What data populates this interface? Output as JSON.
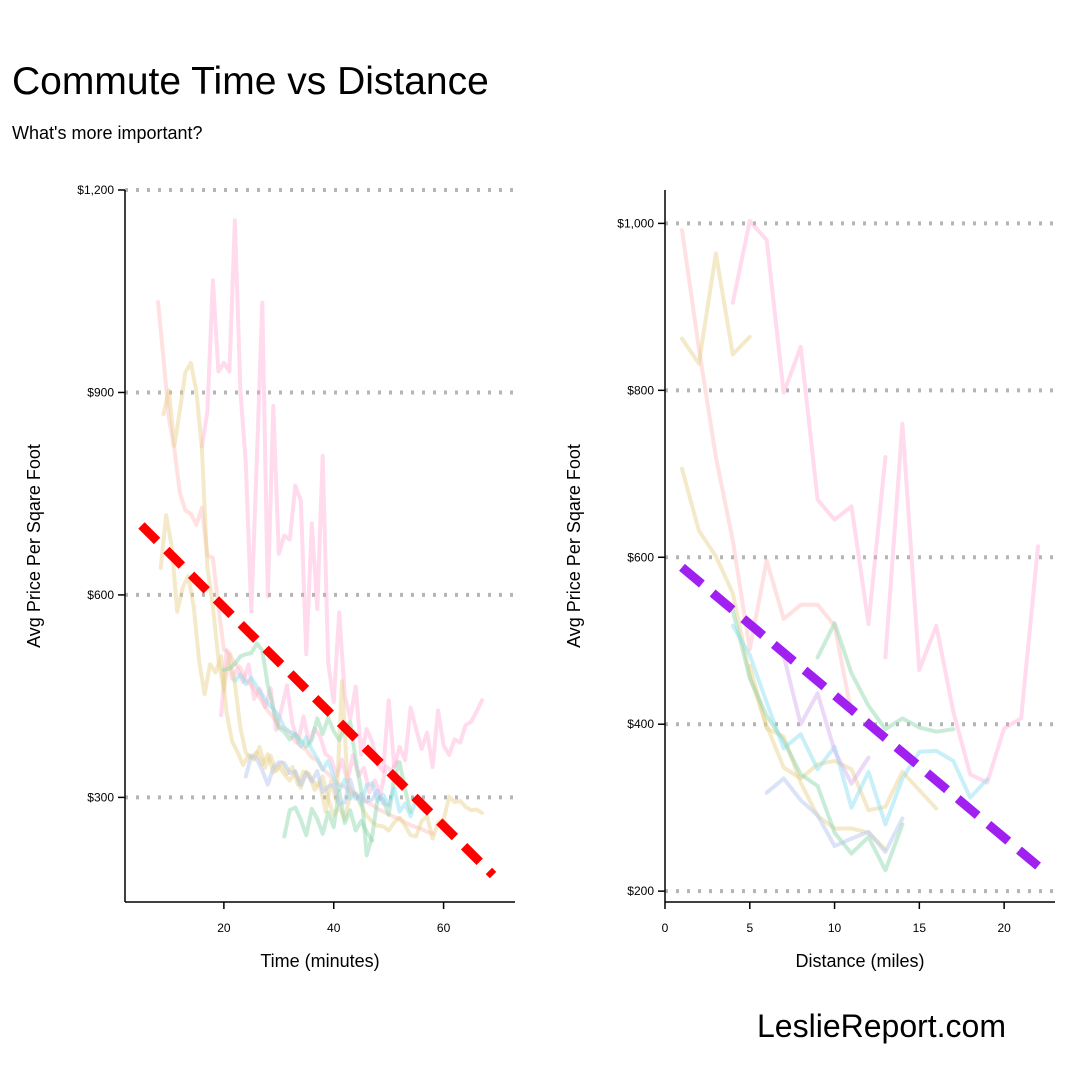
{
  "title": "Commute Time vs Distance",
  "subtitle": "What's more important?",
  "brand": "LeslieReport.com",
  "chart_data": [
    {
      "type": "line",
      "xlabel": "Time (minutes)",
      "ylabel": "Avg Price Per Sqare Foot",
      "xlim": [
        2,
        73
      ],
      "ylim": [
        145,
        1200
      ],
      "xticks": [
        20,
        40,
        60
      ],
      "xtick_labels": [
        "20",
        "40",
        "60"
      ],
      "yticks": [
        300,
        600,
        900,
        1200
      ],
      "ytick_labels": [
        "$300",
        "$600",
        "$900",
        "$1,200"
      ],
      "grid": "horizontal dotted",
      "series": [
        {
          "color": "#FF99CC",
          "opacity": 0.35,
          "x": [
            19.5,
            20.5,
            21.5,
            22.5,
            23.5,
            24.5,
            25.5,
            26.5,
            27.5,
            28.5,
            29.5,
            30.5,
            31.5,
            32.5,
            33.5,
            34.5,
            35.5,
            36.5,
            37.5,
            38.5,
            39.5,
            40.5,
            41.5,
            42.5,
            43.5,
            44.5,
            45.5,
            46.5,
            47.5,
            48.5,
            49.5,
            50.5,
            51.5
          ],
          "y": [
            422,
            518,
            476,
            491,
            471,
            497,
            446,
            461,
            434,
            462,
            400,
            431,
            466,
            409,
            381,
            420,
            381,
            402,
            391,
            364,
            358,
            331,
            356,
            324,
            363,
            332,
            344,
            308,
            325,
            304,
            346,
            339,
            353
          ]
        },
        {
          "color": "#FF99CC",
          "opacity": 0.35,
          "x": [
            16,
            17,
            18,
            19,
            20,
            21,
            22,
            23,
            24,
            25,
            26,
            27,
            28,
            29,
            30,
            31,
            32,
            33,
            34,
            35,
            36,
            37,
            38,
            39,
            40,
            41,
            42,
            43,
            44,
            45,
            46,
            47,
            48,
            49,
            50,
            51,
            52,
            53,
            54,
            55,
            56,
            57,
            58,
            59,
            60,
            61,
            62,
            63,
            64,
            65,
            66,
            67
          ],
          "y": [
            820,
            872,
            1066,
            931,
            944,
            931,
            1155,
            902,
            795,
            575,
            799,
            1033,
            598,
            880,
            661,
            688,
            682,
            762,
            740,
            512,
            706,
            579,
            806,
            499,
            441,
            574,
            451,
            417,
            464,
            363,
            401,
            383,
            348,
            339,
            444,
            346,
            375,
            355,
            433,
            401,
            372,
            396,
            345,
            429,
            377,
            363,
            386,
            381,
            407,
            412,
            427,
            444
          ]
        },
        {
          "color": "#FFB3B3",
          "opacity": 0.4,
          "x": [
            8,
            9,
            10,
            11,
            12,
            13,
            14,
            15,
            16,
            17,
            18,
            19,
            20,
            21,
            22,
            23,
            24,
            25,
            26,
            27,
            28,
            29,
            30,
            31,
            32,
            33,
            34,
            35,
            36,
            37,
            38,
            39,
            40,
            41,
            42,
            43,
            44,
            45,
            46,
            47,
            48,
            49,
            50,
            51,
            52,
            53,
            54,
            55,
            56,
            57,
            58
          ],
          "y": [
            1034,
            950,
            862,
            816,
            751,
            725,
            720,
            704,
            729,
            658,
            655,
            582,
            519,
            514,
            498,
            492,
            474,
            466,
            456,
            441,
            428,
            419,
            405,
            403,
            396,
            383,
            376,
            370,
            359,
            355,
            342,
            335,
            326,
            319,
            315,
            310,
            305,
            297,
            293,
            289,
            283,
            279,
            275,
            271,
            268,
            263,
            259,
            256,
            253,
            249,
            246
          ]
        },
        {
          "color": "#E6D08A",
          "opacity": 0.45,
          "x": [
            9,
            10,
            11,
            12,
            13,
            14,
            15,
            16,
            17,
            18,
            19,
            20,
            21,
            22,
            23,
            24,
            25,
            26,
            27,
            28,
            29,
            30,
            31,
            32,
            33,
            34,
            35,
            36,
            37,
            38,
            39,
            40,
            41,
            42,
            43,
            44,
            45,
            46,
            47,
            48,
            49,
            50,
            51,
            52,
            53,
            54,
            55,
            56,
            57,
            58,
            59,
            60,
            61,
            62,
            63,
            64,
            65,
            66,
            67
          ],
          "y": [
            868,
            903,
            821,
            874,
            930,
            944,
            901,
            817,
            640,
            583,
            504,
            459,
            512,
            468,
            403,
            366,
            359,
            367,
            349,
            364,
            337,
            346,
            334,
            325,
            337,
            314,
            338,
            326,
            318,
            331,
            298,
            273,
            286,
            267,
            305,
            306,
            287,
            273,
            264,
            258,
            257,
            251,
            263,
            270,
            258,
            244,
            242,
            265,
            272,
            239,
            263,
            267,
            301,
            293,
            295,
            286,
            281,
            282,
            277
          ]
        },
        {
          "color": "#E6D08A",
          "opacity": 0.45,
          "x": [
            8.5,
            9.5,
            10.5,
            11.5,
            12.5,
            13.5,
            14.5,
            15.5,
            16.5,
            17.5,
            18.5,
            19.5,
            20.5,
            21.5,
            22.5,
            23.5,
            24.5,
            25.5,
            26.5,
            27.5,
            28.5,
            29.5,
            30.5,
            31.5,
            32.5,
            33.5,
            34.5,
            35.5,
            36.5,
            37.5,
            38.5,
            39.5,
            40.5,
            41.5,
            42.5,
            43.5
          ],
          "y": [
            640,
            718,
            672,
            575,
            611,
            628,
            583,
            501,
            453,
            497,
            485,
            509,
            425,
            383,
            367,
            348,
            362,
            356,
            375,
            344,
            362,
            339,
            352,
            335,
            345,
            319,
            338,
            335,
            311,
            320,
            279,
            324,
            294,
            472,
            322,
            304
          ]
        },
        {
          "color": "#88D4A8",
          "opacity": 0.45,
          "x": [
            20,
            21,
            22,
            23,
            24,
            25,
            26,
            27,
            28,
            29,
            30,
            31,
            32,
            33,
            34,
            35,
            36,
            37,
            38,
            39,
            40,
            41,
            42,
            43,
            44,
            45,
            46,
            47,
            48,
            49,
            50,
            51,
            52,
            53,
            54
          ],
          "y": [
            489,
            491,
            498,
            509,
            512,
            514,
            528,
            518,
            466,
            432,
            403,
            397,
            386,
            394,
            384,
            375,
            385,
            417,
            394,
            418,
            398,
            385,
            403,
            412,
            356,
            310,
            214,
            243,
            298,
            297,
            274,
            328,
            352,
            312,
            278
          ]
        },
        {
          "color": "#88D4A8",
          "opacity": 0.45,
          "x": [
            31,
            32,
            33,
            34,
            35,
            36,
            37,
            38,
            39,
            40,
            41,
            42,
            43,
            44,
            45,
            46,
            47
          ],
          "y": [
            242,
            281,
            285,
            267,
            244,
            283,
            268,
            246,
            278,
            256,
            310,
            262,
            281,
            251,
            265,
            249,
            236
          ]
        },
        {
          "color": "#88DDF0",
          "opacity": 0.45,
          "x": [
            22,
            23,
            24,
            25,
            26,
            27,
            28,
            29,
            30,
            31,
            32,
            33,
            34,
            35,
            36,
            37,
            38,
            39,
            40,
            41,
            42,
            43,
            44,
            45,
            46,
            47,
            48,
            49,
            50,
            51,
            52,
            53,
            54,
            55,
            56,
            57
          ],
          "y": [
            473,
            482,
            468,
            477,
            464,
            452,
            439,
            431,
            421,
            403,
            397,
            394,
            376,
            389,
            371,
            358,
            341,
            354,
            331,
            311,
            326,
            298,
            305,
            290,
            318,
            321,
            295,
            304,
            289,
            313,
            279,
            291,
            272,
            297,
            282,
            276
          ]
        },
        {
          "color": "#B8C8F0",
          "opacity": 0.5,
          "x": [
            24,
            25,
            26,
            27,
            28,
            29,
            30,
            31,
            32,
            33,
            34,
            35,
            36,
            37,
            38,
            39,
            40,
            41,
            42,
            43,
            44,
            45,
            46,
            47,
            48,
            49,
            50
          ],
          "y": [
            331,
            362,
            357,
            340,
            319,
            344,
            352,
            351,
            336,
            339,
            318,
            336,
            324,
            339,
            308,
            316,
            319,
            290,
            293,
            326,
            298,
            305,
            294,
            297,
            310,
            291,
            289
          ]
        }
      ],
      "trend": {
        "color": "#FF0000",
        "x": [
          5,
          69
        ],
        "y": [
          703,
          185
        ]
      }
    },
    {
      "type": "line",
      "xlabel": "Distance (miles)",
      "ylabel": "Avg Price Per Sqare Foot",
      "xlim": [
        0,
        23
      ],
      "ylim": [
        187,
        1040
      ],
      "xticks": [
        0,
        5,
        10,
        15,
        20
      ],
      "xtick_labels": [
        "0",
        "5",
        "10",
        "15",
        "20"
      ],
      "yticks": [
        200,
        400,
        600,
        800,
        1000
      ],
      "ytick_labels": [
        "$200",
        "$400",
        "$600",
        "$800",
        "$1,000"
      ],
      "grid": "horizontal dotted",
      "series": [
        {
          "color": "#FF99CC",
          "opacity": 0.35,
          "x": [
            4,
            5,
            6,
            7,
            8,
            9,
            10,
            11,
            12,
            13
          ],
          "y": [
            905,
            1003,
            980,
            797,
            852,
            669,
            645,
            661,
            520,
            720
          ]
        },
        {
          "color": "#FF99CC",
          "opacity": 0.35,
          "x": [
            13,
            14,
            15,
            16,
            17,
            18,
            19,
            20,
            21,
            22
          ],
          "y": [
            480,
            760,
            465,
            518,
            415,
            340,
            330,
            395,
            407,
            613
          ]
        },
        {
          "color": "#FFB3B3",
          "opacity": 0.4,
          "x": [
            1,
            2,
            3,
            4,
            5,
            6,
            7,
            8,
            9,
            10,
            11
          ],
          "y": [
            992,
            850,
            720,
            620,
            490,
            596,
            526,
            543,
            543,
            518,
            413
          ]
        },
        {
          "color": "#E6D08A",
          "opacity": 0.45,
          "x": [
            1,
            2,
            3,
            4,
            5
          ],
          "y": [
            862,
            832,
            964,
            843,
            864
          ]
        },
        {
          "color": "#E6D08A",
          "opacity": 0.45,
          "x": [
            1,
            2,
            3,
            4,
            5,
            6,
            7,
            8,
            9,
            10,
            11,
            12,
            13,
            14,
            15,
            16
          ],
          "y": [
            706,
            632,
            601,
            557,
            458,
            398,
            348,
            335,
            352,
            356,
            346,
            297,
            301,
            343,
            321,
            299
          ]
        },
        {
          "color": "#E6D08A",
          "opacity": 0.45,
          "x": [
            5,
            6,
            7,
            8,
            9,
            10,
            11,
            12,
            13
          ],
          "y": [
            470,
            395,
            385,
            330,
            290,
            275,
            275,
            270,
            250
          ]
        },
        {
          "color": "#88D4A8",
          "opacity": 0.45,
          "x": [
            9,
            10,
            11,
            12,
            13,
            14,
            15,
            16,
            17
          ],
          "y": [
            480,
            521,
            461,
            422,
            394,
            407,
            396,
            391,
            394
          ]
        },
        {
          "color": "#88D4A8",
          "opacity": 0.45,
          "x": [
            4,
            5,
            6,
            7,
            8,
            9,
            10,
            11,
            12,
            13,
            14
          ],
          "y": [
            536,
            455,
            410,
            380,
            340,
            326,
            270,
            245,
            265,
            225,
            280
          ]
        },
        {
          "color": "#88DDF0",
          "opacity": 0.45,
          "x": [
            4,
            5,
            6,
            7,
            8,
            9,
            10,
            11,
            12,
            13,
            14,
            15,
            16,
            17,
            18,
            19
          ],
          "y": [
            518,
            483,
            426,
            371,
            388,
            346,
            373,
            300,
            343,
            280,
            335,
            367,
            368,
            356,
            312,
            334
          ]
        },
        {
          "color": "#B8C8F0",
          "opacity": 0.5,
          "x": [
            6,
            7,
            8,
            9,
            10,
            11,
            12,
            13,
            14
          ],
          "y": [
            318,
            335,
            309,
            291,
            254,
            263,
            271,
            247,
            287
          ]
        },
        {
          "color": "#D8B3F0",
          "opacity": 0.5,
          "x": [
            7,
            8,
            9,
            10,
            11,
            12
          ],
          "y": [
            482,
            400,
            437,
            368,
            329,
            360
          ]
        }
      ],
      "trend": {
        "color": "#A020F0",
        "x": [
          1,
          22
        ],
        "y": [
          588,
          230
        ]
      }
    }
  ]
}
